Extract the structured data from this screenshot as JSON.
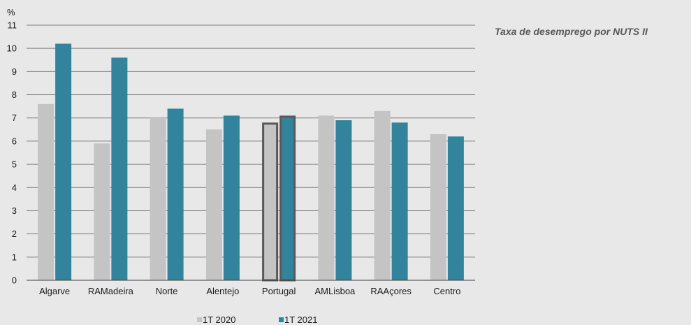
{
  "side_title": "Taxa de desemprego por NUTS II",
  "chart_data": {
    "type": "bar",
    "ylabel": "%",
    "ylim": [
      0,
      11
    ],
    "yticks": [
      0,
      1,
      2,
      3,
      4,
      5,
      6,
      7,
      8,
      9,
      10,
      11
    ],
    "grid": true,
    "legend_position": "bottom",
    "categories": [
      "Algarve",
      "RAMadeira",
      "Norte",
      "Alentejo",
      "Portugal",
      "AMLisboa",
      "RAAçores",
      "Centro"
    ],
    "highlight_category": "Portugal",
    "series": [
      {
        "name": "1T 2020",
        "color": "#c4c4c4",
        "values": [
          7.6,
          5.9,
          7.0,
          6.5,
          6.8,
          7.1,
          7.3,
          6.3
        ]
      },
      {
        "name": "1T 2021",
        "color": "#31849b",
        "values": [
          10.2,
          9.6,
          7.4,
          7.1,
          7.1,
          6.9,
          6.8,
          6.2
        ]
      }
    ]
  }
}
